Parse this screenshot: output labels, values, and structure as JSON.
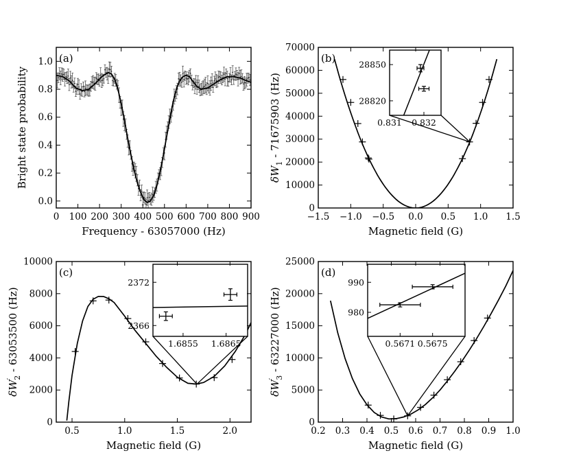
{
  "chart_data": [
    {
      "id": "a",
      "type": "scatter",
      "panel_label": "(a)",
      "xlabel": "Frequency - 63057000 (Hz)",
      "ylabel": "Bright state probability",
      "xlim": [
        0,
        900
      ],
      "ylim": [
        -0.05,
        1.1
      ],
      "xticks": [
        0,
        100,
        200,
        300,
        400,
        500,
        600,
        700,
        800,
        900
      ],
      "xtick_labels": [
        "0",
        "100",
        "200",
        "300",
        "400",
        "500",
        "600",
        "700",
        "800",
        "900"
      ],
      "yticks": [
        0.0,
        0.2,
        0.4,
        0.6,
        0.8,
        1.0
      ],
      "ytick_labels": [
        "0.0",
        "0.2",
        "0.4",
        "0.6",
        "0.8",
        "1.0"
      ],
      "series": [
        {
          "name": "fit",
          "style": "line",
          "x": [
            0,
            30,
            60,
            90,
            120,
            150,
            180,
            210,
            240,
            255,
            270,
            285,
            300,
            315,
            330,
            345,
            360,
            375,
            390,
            405,
            420,
            435,
            450,
            465,
            480,
            495,
            510,
            525,
            540,
            555,
            570,
            585,
            600,
            615,
            630,
            650,
            670,
            700,
            730,
            760,
            790,
            820,
            850,
            880,
            900
          ],
          "y": [
            0.9,
            0.89,
            0.86,
            0.81,
            0.79,
            0.8,
            0.84,
            0.89,
            0.92,
            0.91,
            0.87,
            0.8,
            0.7,
            0.58,
            0.45,
            0.33,
            0.22,
            0.13,
            0.06,
            0.01,
            -0.01,
            0.0,
            0.04,
            0.11,
            0.21,
            0.33,
            0.46,
            0.59,
            0.71,
            0.8,
            0.86,
            0.89,
            0.9,
            0.89,
            0.86,
            0.82,
            0.8,
            0.81,
            0.84,
            0.87,
            0.89,
            0.89,
            0.88,
            0.86,
            0.85
          ]
        }
      ],
      "points_note": "data points every 5 Hz with error bars ~0.04 following the fit with scatter"
    },
    {
      "id": "b",
      "type": "line",
      "panel_label": "(b)",
      "xlabel": "Magnetic field (G)",
      "ylabel": "δW1 - 71675903 (Hz)",
      "ylabel_parts": {
        "base": "δW",
        "sub": "1",
        "rest": " - 71675903 (Hz)"
      },
      "xlim": [
        -1.5,
        1.5
      ],
      "ylim": [
        0,
        70000
      ],
      "xticks": [
        -1.5,
        -1.0,
        -0.5,
        0.0,
        0.5,
        1.0,
        1.5
      ],
      "xtick_labels": [
        "−1.5",
        "−1.0",
        "−0.5",
        "0.0",
        "0.5",
        "1.0",
        "1.5"
      ],
      "yticks": [
        0,
        10000,
        20000,
        30000,
        40000,
        50000,
        60000,
        70000
      ],
      "ytick_labels": [
        "0",
        "10000",
        "20000",
        "30000",
        "40000",
        "50000",
        "60000",
        "70000"
      ],
      "curve": {
        "kind": "quadratic",
        "a": 41500,
        "x0": 0,
        "y0": 0,
        "xrange": [
          -1.25,
          1.25
        ]
      },
      "points": [
        {
          "x": -1.12,
          "y": 56000
        },
        {
          "x": -1.0,
          "y": 46000
        },
        {
          "x": -0.89,
          "y": 36800
        },
        {
          "x": -0.82,
          "y": 28800
        },
        {
          "x": -0.73,
          "y": 21800
        },
        {
          "x": -0.72,
          "y": 21300
        },
        {
          "x": 0.72,
          "y": 21500
        },
        {
          "x": 0.83,
          "y": 28800
        },
        {
          "x": 0.93,
          "y": 36900
        },
        {
          "x": 1.03,
          "y": 46000
        },
        {
          "x": 1.13,
          "y": 56000
        }
      ],
      "zoom_target": {
        "x": 0.8317,
        "y": 28835
      },
      "inset": {
        "xlim": [
          0.831,
          0.8325
        ],
        "ylim": [
          28808,
          28862
        ],
        "xticks": [
          0.831,
          0.832
        ],
        "xtick_labels": [
          "0.831",
          "0.832"
        ],
        "yticks": [
          28820,
          28850
        ],
        "ytick_labels": [
          "28820",
          "28850"
        ],
        "line": {
          "x": [
            0.8313,
            0.8323
          ],
          "y": [
            28800,
            28872
          ]
        },
        "points": [
          {
            "x": 0.8319,
            "y": 28847,
            "xerr": 0.0001,
            "yerr": 3
          },
          {
            "x": 0.832,
            "y": 28830,
            "xerr": 0.00015,
            "yerr": 2
          }
        ]
      }
    },
    {
      "id": "c",
      "type": "line",
      "panel_label": "(c)",
      "xlabel": "Magnetic field (G)",
      "ylabel": "δW′2 - 63053500 (Hz)",
      "ylabel_parts": {
        "base": "δW",
        "sup": "′",
        "sub": "2",
        "rest": " - 63053500 (Hz)"
      },
      "xlim": [
        0.35,
        2.2
      ],
      "ylim": [
        0,
        10000
      ],
      "xticks": [
        0.5,
        1.0,
        1.5,
        2.0
      ],
      "xtick_labels": [
        "0.5",
        "1.0",
        "1.5",
        "2.0"
      ],
      "yticks": [
        0,
        2000,
        4000,
        6000,
        8000,
        10000
      ],
      "ytick_labels": [
        "0",
        "2000",
        "4000",
        "6000",
        "8000",
        "10000"
      ],
      "curve": {
        "x": [
          0.45,
          0.47,
          0.5,
          0.55,
          0.6,
          0.65,
          0.7,
          0.75,
          0.8,
          0.85,
          0.9,
          1.0,
          1.1,
          1.2,
          1.3,
          1.4,
          1.5,
          1.6,
          1.68,
          1.75,
          1.85,
          1.95,
          2.05,
          2.15,
          2.2
        ],
        "y": [
          100,
          1300,
          2900,
          4900,
          6300,
          7200,
          7650,
          7830,
          7820,
          7680,
          7450,
          6600,
          5700,
          4900,
          4100,
          3400,
          2800,
          2420,
          2370,
          2470,
          2850,
          3500,
          4400,
          5500,
          6200
        ]
      },
      "points": [
        {
          "x": 0.53,
          "y": 4400
        },
        {
          "x": 0.7,
          "y": 7550
        },
        {
          "x": 0.85,
          "y": 7600
        },
        {
          "x": 1.03,
          "y": 6450
        },
        {
          "x": 1.2,
          "y": 5000
        },
        {
          "x": 1.36,
          "y": 3650
        },
        {
          "x": 1.52,
          "y": 2750
        },
        {
          "x": 1.68,
          "y": 2370
        },
        {
          "x": 1.85,
          "y": 2770
        },
        {
          "x": 2.02,
          "y": 3900
        }
      ],
      "zoom_target": {
        "x": 1.686,
        "y": 2370
      },
      "inset": {
        "xlim": [
          1.6848,
          1.687
        ],
        "ylim": [
          2364.5,
          2374.5
        ],
        "xticks": [
          1.6855,
          1.6865
        ],
        "xtick_labels": [
          "1.6855",
          "1.6865"
        ],
        "yticks": [
          2366,
          2372
        ],
        "ytick_labels": [
          "2366",
          "2372"
        ],
        "line": {
          "x": [
            1.6848,
            1.687
          ],
          "y": [
            2368.5,
            2368.7
          ]
        },
        "points": [
          {
            "x": 1.6851,
            "y": 2367.3,
            "xerr": 0.00015,
            "yerr": 0.6
          },
          {
            "x": 1.6866,
            "y": 2370.3,
            "xerr": 0.00015,
            "yerr": 0.8
          }
        ]
      }
    },
    {
      "id": "d",
      "type": "line",
      "panel_label": "(d)",
      "xlabel": "Magnetic field (G)",
      "ylabel": "δW′3 - 63227000 (Hz)",
      "ylabel_parts": {
        "base": "δW",
        "sup": "′",
        "sub": "3",
        "rest": " - 63227000 (Hz)"
      },
      "xlim": [
        0.2,
        1.0
      ],
      "ylim": [
        0,
        25000
      ],
      "xticks": [
        0.2,
        0.3,
        0.4,
        0.5,
        0.6,
        0.7,
        0.8,
        0.9,
        1.0
      ],
      "xtick_labels": [
        "0.2",
        "0.3",
        "0.4",
        "0.5",
        "0.6",
        "0.7",
        "0.8",
        "0.9",
        "1.0"
      ],
      "yticks": [
        0,
        5000,
        10000,
        15000,
        20000,
        25000
      ],
      "ytick_labels": [
        "0",
        "5000",
        "10000",
        "15000",
        "20000",
        "25000"
      ],
      "curve": {
        "x": [
          0.25,
          0.28,
          0.31,
          0.34,
          0.37,
          0.4,
          0.43,
          0.46,
          0.49,
          0.52,
          0.55,
          0.58,
          0.61,
          0.64,
          0.67,
          0.7,
          0.73,
          0.76,
          0.79,
          0.82,
          0.85,
          0.88,
          0.91,
          0.94,
          0.97,
          1.0
        ],
        "y": [
          18900,
          13900,
          9900,
          6800,
          4400,
          2700,
          1500,
          800,
          500,
          550,
          800,
          1250,
          1900,
          2750,
          3800,
          5000,
          6400,
          7900,
          9500,
          11200,
          13000,
          14900,
          16900,
          19000,
          21200,
          23600
        ]
      },
      "points": [
        {
          "x": 0.405,
          "y": 2650
        },
        {
          "x": 0.455,
          "y": 1050
        },
        {
          "x": 0.51,
          "y": 500
        },
        {
          "x": 0.567,
          "y": 985
        },
        {
          "x": 0.62,
          "y": 2300
        },
        {
          "x": 0.675,
          "y": 4200
        },
        {
          "x": 0.73,
          "y": 6600
        },
        {
          "x": 0.785,
          "y": 9400
        },
        {
          "x": 0.84,
          "y": 12700
        },
        {
          "x": 0.895,
          "y": 16200
        }
      ],
      "zoom_target": {
        "x": 0.567,
        "y": 985
      },
      "inset": {
        "xlim": [
          0.5667,
          0.5679
        ],
        "ylim": [
          972,
          996
        ],
        "xticks": [
          0.5671,
          0.5675
        ],
        "xtick_labels": [
          "0.5671",
          "0.5675"
        ],
        "yticks": [
          980,
          990
        ],
        "ytick_labels": [
          "980",
          "990"
        ],
        "line": {
          "x": [
            0.5667,
            0.5679
          ],
          "y": [
            978,
            993
          ]
        },
        "points": [
          {
            "x": 0.5671,
            "y": 982.5,
            "xerr": 0.00025,
            "yerr": 0.7
          },
          {
            "x": 0.5675,
            "y": 988.5,
            "xerr": 0.00025,
            "yerr": 0.7
          }
        ]
      }
    }
  ]
}
